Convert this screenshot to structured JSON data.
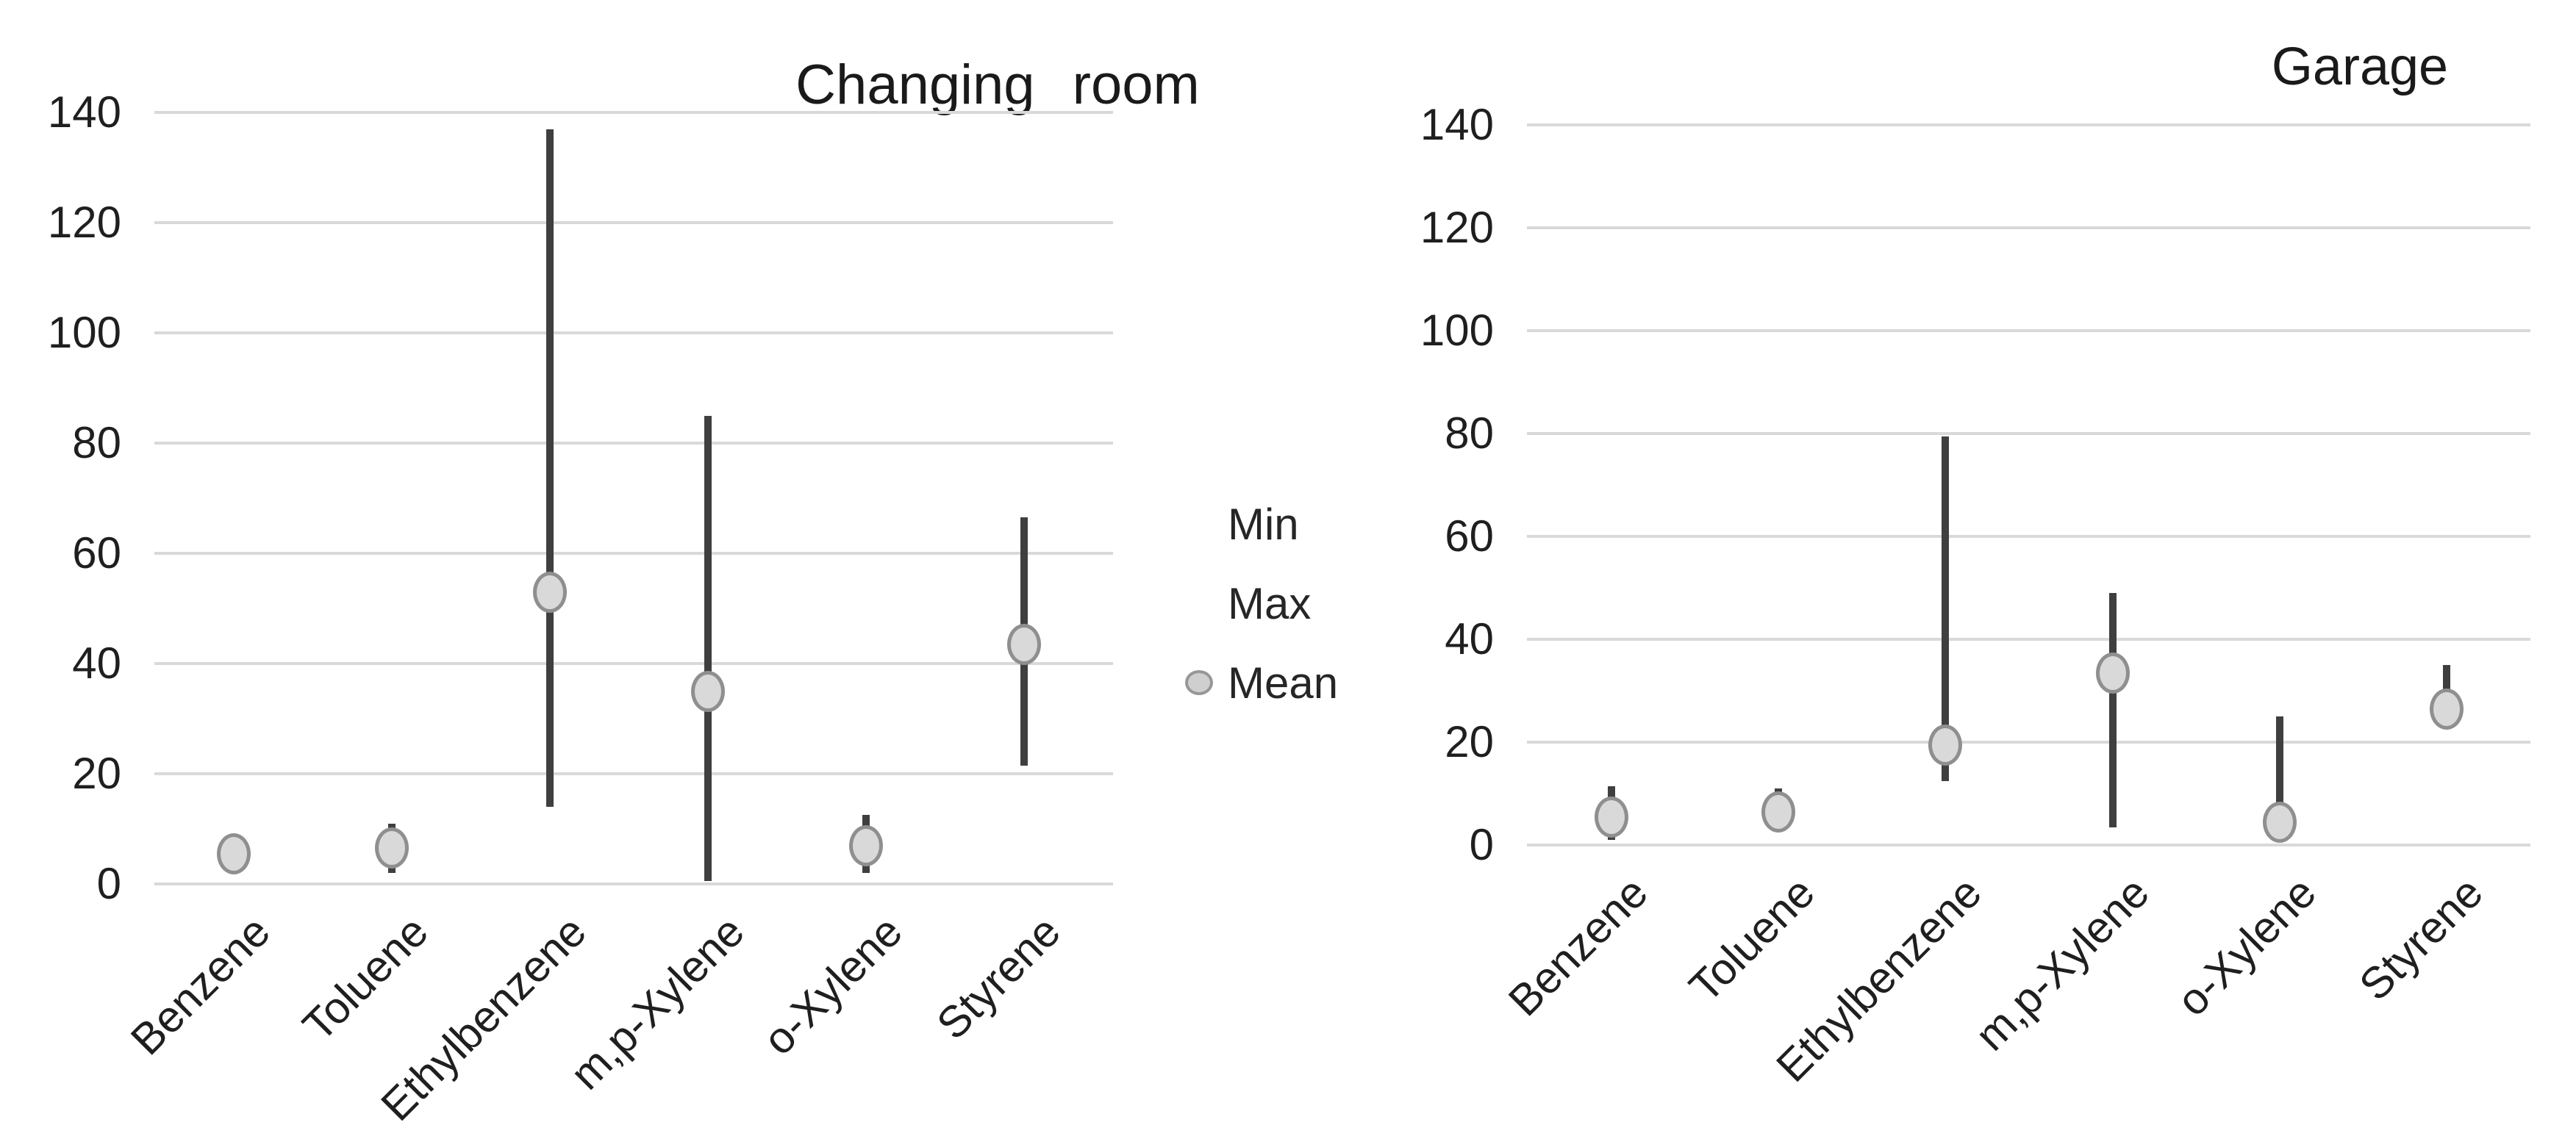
{
  "page": {
    "background": "#ffffff"
  },
  "colors": {
    "gridline": "#d9d9d9",
    "whisker_line": "#3f3f3f",
    "mean_marker_fill": "#d9d9d9",
    "mean_marker_border": "#8f8f8f",
    "text": "#1f1f1f"
  },
  "legend": {
    "position": "between-charts",
    "items": [
      {
        "label": "Min",
        "marker": "none"
      },
      {
        "label": "Max",
        "marker": "none"
      },
      {
        "label": "Mean",
        "marker": "gray-circle"
      }
    ]
  },
  "chart_data": [
    {
      "type": "scatter",
      "subtype": "min-max-mean vertical range (hi-lo lines with mean dot)",
      "title": "Changing room",
      "categories": [
        "Benzene",
        "Toluene",
        "Ethylbenzene",
        "m,p-Xylene",
        "o-Xylene",
        "Styrene"
      ],
      "series": [
        {
          "name": "Min",
          "values": [
            2,
            2,
            14,
            0.5,
            2,
            21.5
          ]
        },
        {
          "name": "Max",
          "values": [
            8,
            11,
            137,
            85,
            12.5,
            66.5
          ]
        },
        {
          "name": "Mean",
          "values": [
            5.5,
            6.5,
            53,
            35,
            7,
            43.5
          ]
        }
      ],
      "xlabel": "",
      "ylabel": "",
      "ylim": [
        0,
        140
      ],
      "yticks": [
        0,
        20,
        40,
        60,
        80,
        100,
        120,
        140
      ],
      "grid": true,
      "x_tick_rotation_deg": 45
    },
    {
      "type": "scatter",
      "subtype": "min-max-mean vertical range (hi-lo lines with mean dot)",
      "title": "Garage",
      "categories": [
        "Benzene",
        "Toluene",
        "Ethylbenzene",
        "m,p-Xylene",
        "o-Xylene",
        "Styrene"
      ],
      "series": [
        {
          "name": "Min",
          "values": [
            1,
            3,
            12.5,
            3.5,
            2,
            24
          ]
        },
        {
          "name": "Max",
          "values": [
            11.5,
            11,
            79.5,
            49,
            25,
            35
          ]
        },
        {
          "name": "Mean",
          "values": [
            5.5,
            6.5,
            19.5,
            33.5,
            4.5,
            26.5
          ]
        }
      ],
      "xlabel": "",
      "ylabel": "",
      "ylim": [
        0,
        140
      ],
      "yticks": [
        0,
        20,
        40,
        60,
        80,
        100,
        120,
        140
      ],
      "grid": true,
      "x_tick_rotation_deg": 45
    }
  ]
}
